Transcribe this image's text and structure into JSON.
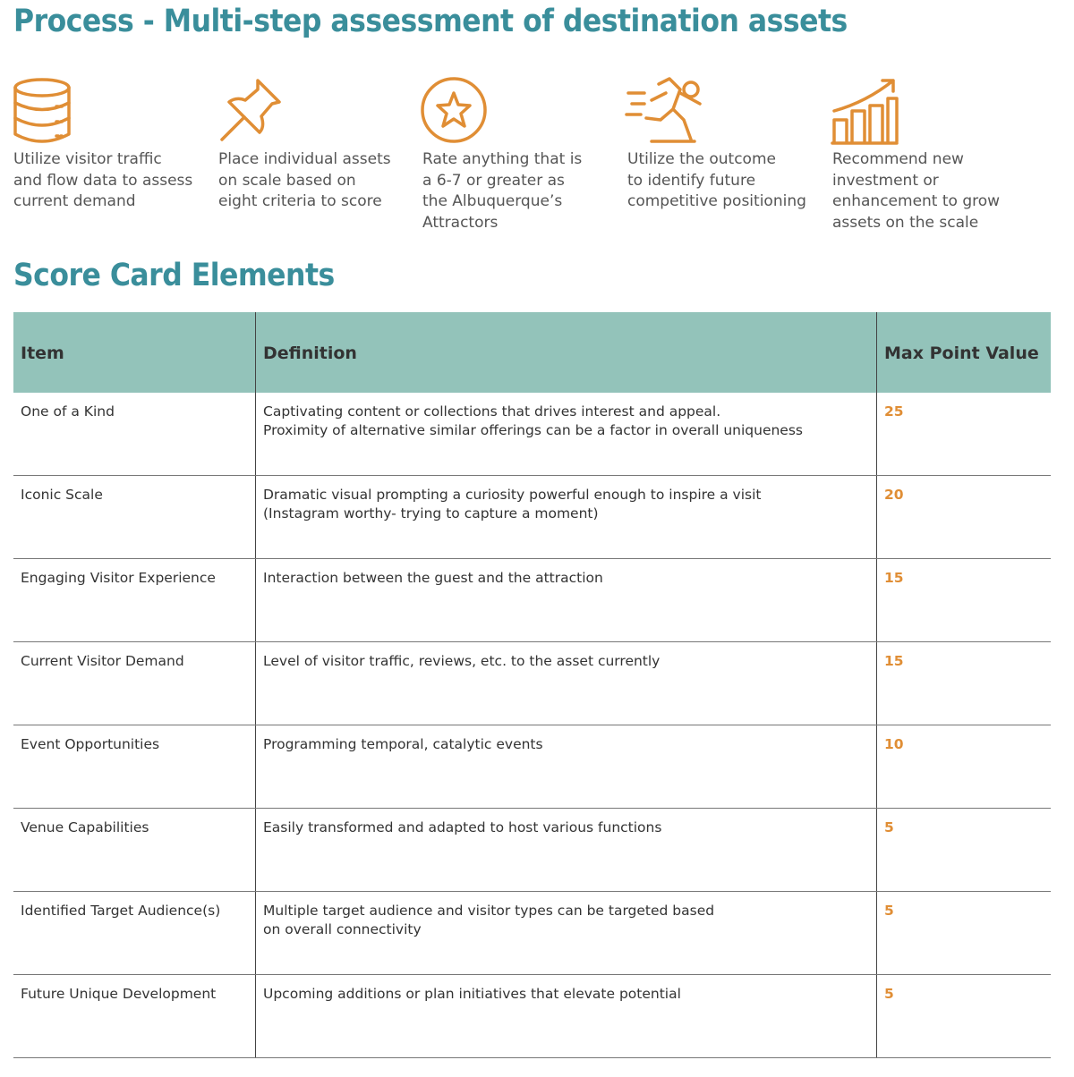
{
  "title": "Process - Multi-step assessment of destination assets",
  "steps": [
    {
      "lines": [
        "Utilize visitor traffic",
        "and flow data to assess",
        "current demand"
      ]
    },
    {
      "lines": [
        "Place individual assets",
        "on scale based on",
        "eight criteria to score"
      ]
    },
    {
      "lines": [
        "Rate anything that is",
        "a 6-7 or greater as",
        "the Albuquerque’s",
        "Attractors"
      ]
    },
    {
      "lines": [
        "Utilize the outcome",
        "to identify future",
        "competitive positioning"
      ]
    },
    {
      "lines": [
        "Recommend new",
        "investment or",
        "enhancement to grow",
        "assets on the scale"
      ]
    }
  ],
  "scorecard": {
    "title": "Score Card Elements",
    "headers": [
      "Item",
      "Definition",
      "Max Point Value"
    ],
    "rows": [
      {
        "item": "One of a Kind",
        "definition": [
          "Captivating content or collections that drives interest and appeal.",
          "Proximity of alternative similar offerings can be a factor in overall uniqueness"
        ],
        "points": "25"
      },
      {
        "item": "Iconic Scale",
        "definition": [
          "Dramatic visual prompting a curiosity powerful enough to inspire a visit",
          "(Instagram worthy- trying to capture a moment)"
        ],
        "points": "20"
      },
      {
        "item": "Engaging Visitor Experience",
        "definition": [
          "Interaction between the guest and the attraction"
        ],
        "points": "15"
      },
      {
        "item": "Current Visitor Demand",
        "definition": [
          "Level of visitor traffic, reviews, etc. to the asset currently"
        ],
        "points": "15"
      },
      {
        "item": "Event Opportunities",
        "definition": [
          "Programming temporal, catalytic events"
        ],
        "points": "10"
      },
      {
        "item": "Venue Capabilities",
        "definition": [
          "Easily transformed and adapted to host various functions"
        ],
        "points": "5"
      },
      {
        "item": "Identified Target Audience(s)",
        "definition": [
          "Multiple target audience and visitor types can be targeted based",
          "on overall connectivity"
        ],
        "points": "5"
      },
      {
        "item": "Future Unique Development",
        "definition": [
          "Upcoming additions or plan initiatives that elevate potential"
        ],
        "points": "5"
      }
    ]
  }
}
